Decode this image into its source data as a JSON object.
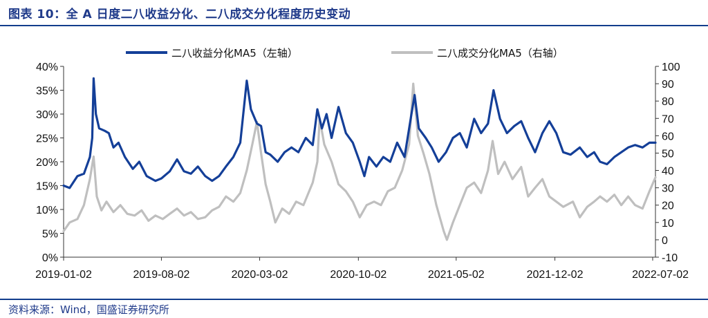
{
  "header": {
    "title": "图表 10：全 A 日度二八收益分化、二八成交分化程度历史变动"
  },
  "footer": {
    "source": "资料来源：Wind，国盛证券研究所"
  },
  "chart_data": {
    "type": "line",
    "x_ticks": [
      "2019-01-02",
      "2019-08-02",
      "2020-03-02",
      "2020-10-02",
      "2021-05-02",
      "2021-12-02",
      "2022-07-02"
    ],
    "x_range": [
      "2019-01-02",
      "2022-07-08"
    ],
    "y_left": {
      "min": 0,
      "max": 40,
      "step": 5,
      "format": "percent"
    },
    "y_right": {
      "min": -10,
      "max": 100,
      "step": 10
    },
    "grid": false,
    "legend": "top",
    "series": [
      {
        "name": "二八收益分化MA5（左轴）",
        "axis": "left",
        "color": "#143f98",
        "points": [
          [
            "2019-01-02",
            15.0
          ],
          [
            "2019-01-15",
            14.5
          ],
          [
            "2019-02-01",
            17.0
          ],
          [
            "2019-02-15",
            17.5
          ],
          [
            "2019-02-28",
            21.0
          ],
          [
            "2019-03-05",
            25.0
          ],
          [
            "2019-03-08",
            37.5
          ],
          [
            "2019-03-13",
            30.0
          ],
          [
            "2019-03-20",
            27.0
          ],
          [
            "2019-04-01",
            26.5
          ],
          [
            "2019-04-10",
            26.0
          ],
          [
            "2019-04-20",
            23.0
          ],
          [
            "2019-05-01",
            24.0
          ],
          [
            "2019-05-15",
            21.0
          ],
          [
            "2019-06-01",
            18.5
          ],
          [
            "2019-06-15",
            20.0
          ],
          [
            "2019-07-01",
            17.0
          ],
          [
            "2019-07-20",
            16.0
          ],
          [
            "2019-08-02",
            16.5
          ],
          [
            "2019-08-20",
            18.0
          ],
          [
            "2019-09-05",
            20.5
          ],
          [
            "2019-09-20",
            18.0
          ],
          [
            "2019-10-05",
            17.5
          ],
          [
            "2019-10-20",
            19.0
          ],
          [
            "2019-11-05",
            17.0
          ],
          [
            "2019-11-20",
            16.0
          ],
          [
            "2019-12-05",
            17.0
          ],
          [
            "2019-12-20",
            19.0
          ],
          [
            "2020-01-05",
            21.0
          ],
          [
            "2020-01-20",
            24.0
          ],
          [
            "2020-02-03",
            37.0
          ],
          [
            "2020-02-12",
            31.0
          ],
          [
            "2020-02-25",
            28.0
          ],
          [
            "2020-03-05",
            27.5
          ],
          [
            "2020-03-15",
            22.0
          ],
          [
            "2020-03-25",
            21.5
          ],
          [
            "2020-04-10",
            20.0
          ],
          [
            "2020-04-25",
            22.0
          ],
          [
            "2020-05-10",
            23.0
          ],
          [
            "2020-05-25",
            22.0
          ],
          [
            "2020-06-10",
            25.0
          ],
          [
            "2020-06-25",
            23.5
          ],
          [
            "2020-07-05",
            31.0
          ],
          [
            "2020-07-15",
            27.0
          ],
          [
            "2020-07-25",
            30.0
          ],
          [
            "2020-08-05",
            25.0
          ],
          [
            "2020-08-20",
            31.5
          ],
          [
            "2020-09-05",
            26.0
          ],
          [
            "2020-09-20",
            24.0
          ],
          [
            "2020-10-05",
            20.0
          ],
          [
            "2020-10-15",
            17.0
          ],
          [
            "2020-10-25",
            21.0
          ],
          [
            "2020-11-10",
            19.0
          ],
          [
            "2020-11-25",
            21.0
          ],
          [
            "2020-12-10",
            20.0
          ],
          [
            "2020-12-25",
            24.0
          ],
          [
            "2021-01-10",
            21.0
          ],
          [
            "2021-01-25",
            30.0
          ],
          [
            "2021-02-01",
            34.0
          ],
          [
            "2021-02-10",
            27.0
          ],
          [
            "2021-02-25",
            25.0
          ],
          [
            "2021-03-10",
            23.0
          ],
          [
            "2021-03-25",
            20.0
          ],
          [
            "2021-04-10",
            22.0
          ],
          [
            "2021-04-25",
            25.0
          ],
          [
            "2021-05-10",
            26.0
          ],
          [
            "2021-05-25",
            23.0
          ],
          [
            "2021-06-10",
            29.0
          ],
          [
            "2021-06-25",
            26.0
          ],
          [
            "2021-07-10",
            28.0
          ],
          [
            "2021-07-22",
            35.0
          ],
          [
            "2021-08-05",
            29.0
          ],
          [
            "2021-08-20",
            26.0
          ],
          [
            "2021-09-05",
            27.5
          ],
          [
            "2021-09-20",
            28.5
          ],
          [
            "2021-10-05",
            25.0
          ],
          [
            "2021-10-20",
            22.0
          ],
          [
            "2021-11-05",
            26.0
          ],
          [
            "2021-11-20",
            28.5
          ],
          [
            "2021-12-05",
            26.0
          ],
          [
            "2021-12-20",
            22.0
          ],
          [
            "2022-01-05",
            21.5
          ],
          [
            "2022-01-25",
            23.0
          ],
          [
            "2022-02-10",
            21.0
          ],
          [
            "2022-02-25",
            22.0
          ],
          [
            "2022-03-10",
            20.0
          ],
          [
            "2022-03-25",
            19.5
          ],
          [
            "2022-04-10",
            21.0
          ],
          [
            "2022-04-25",
            22.0
          ],
          [
            "2022-05-10",
            23.0
          ],
          [
            "2022-05-25",
            23.5
          ],
          [
            "2022-06-10",
            23.0
          ],
          [
            "2022-06-25",
            24.0
          ],
          [
            "2022-07-08",
            24.0
          ]
        ]
      },
      {
        "name": "二八成交分化MA5（右轴）",
        "axis": "right",
        "color": "#bfbfbf",
        "points": [
          [
            "2019-01-02",
            5.0
          ],
          [
            "2019-01-15",
            10.0
          ],
          [
            "2019-02-01",
            12.0
          ],
          [
            "2019-02-15",
            20.0
          ],
          [
            "2019-02-28",
            35.0
          ],
          [
            "2019-03-08",
            48.0
          ],
          [
            "2019-03-15",
            25.0
          ],
          [
            "2019-03-25",
            17.0
          ],
          [
            "2019-04-05",
            22.0
          ],
          [
            "2019-04-20",
            16.0
          ],
          [
            "2019-05-05",
            20.0
          ],
          [
            "2019-05-20",
            15.0
          ],
          [
            "2019-06-05",
            14.0
          ],
          [
            "2019-06-20",
            17.0
          ],
          [
            "2019-07-05",
            11.0
          ],
          [
            "2019-07-20",
            14.0
          ],
          [
            "2019-08-05",
            12.0
          ],
          [
            "2019-08-20",
            15.0
          ],
          [
            "2019-09-05",
            18.0
          ],
          [
            "2019-09-20",
            14.0
          ],
          [
            "2019-10-05",
            16.0
          ],
          [
            "2019-10-20",
            12.0
          ],
          [
            "2019-11-05",
            13.0
          ],
          [
            "2019-11-20",
            17.0
          ],
          [
            "2019-12-05",
            19.0
          ],
          [
            "2019-12-20",
            25.0
          ],
          [
            "2020-01-05",
            22.0
          ],
          [
            "2020-01-20",
            27.0
          ],
          [
            "2020-02-03",
            40.0
          ],
          [
            "2020-02-15",
            55.0
          ],
          [
            "2020-02-25",
            68.0
          ],
          [
            "2020-03-05",
            50.0
          ],
          [
            "2020-03-15",
            32.0
          ],
          [
            "2020-03-25",
            22.0
          ],
          [
            "2020-04-05",
            10.0
          ],
          [
            "2020-04-20",
            18.0
          ],
          [
            "2020-05-05",
            15.0
          ],
          [
            "2020-05-20",
            22.0
          ],
          [
            "2020-06-05",
            20.0
          ],
          [
            "2020-06-25",
            33.0
          ],
          [
            "2020-07-05",
            45.0
          ],
          [
            "2020-07-10",
            70.0
          ],
          [
            "2020-07-20",
            55.0
          ],
          [
            "2020-08-05",
            45.0
          ],
          [
            "2020-08-20",
            32.0
          ],
          [
            "2020-09-05",
            28.0
          ],
          [
            "2020-09-20",
            22.0
          ],
          [
            "2020-10-05",
            13.0
          ],
          [
            "2020-10-20",
            20.0
          ],
          [
            "2020-11-05",
            22.0
          ],
          [
            "2020-11-20",
            20.0
          ],
          [
            "2020-12-05",
            28.0
          ],
          [
            "2020-12-20",
            30.0
          ],
          [
            "2021-01-05",
            40.0
          ],
          [
            "2021-01-20",
            55.0
          ],
          [
            "2021-01-29",
            90.0
          ],
          [
            "2021-02-08",
            60.0
          ],
          [
            "2021-02-20",
            50.0
          ],
          [
            "2021-03-05",
            38.0
          ],
          [
            "2021-03-20",
            20.0
          ],
          [
            "2021-04-05",
            5.0
          ],
          [
            "2021-04-12",
            0.0
          ],
          [
            "2021-04-25",
            10.0
          ],
          [
            "2021-05-10",
            20.0
          ],
          [
            "2021-05-25",
            30.0
          ],
          [
            "2021-06-10",
            33.0
          ],
          [
            "2021-06-25",
            27.0
          ],
          [
            "2021-07-10",
            40.0
          ],
          [
            "2021-07-20",
            57.0
          ],
          [
            "2021-08-01",
            38.0
          ],
          [
            "2021-08-15",
            45.0
          ],
          [
            "2021-09-01",
            35.0
          ],
          [
            "2021-09-20",
            42.0
          ],
          [
            "2021-10-05",
            25.0
          ],
          [
            "2021-10-20",
            30.0
          ],
          [
            "2021-11-05",
            35.0
          ],
          [
            "2021-11-20",
            25.0
          ],
          [
            "2021-12-05",
            22.0
          ],
          [
            "2021-12-20",
            19.0
          ],
          [
            "2022-01-10",
            22.0
          ],
          [
            "2022-01-25",
            13.0
          ],
          [
            "2022-02-10",
            19.0
          ],
          [
            "2022-02-25",
            22.0
          ],
          [
            "2022-03-10",
            25.0
          ],
          [
            "2022-03-25",
            22.0
          ],
          [
            "2022-04-10",
            26.0
          ],
          [
            "2022-04-25",
            20.0
          ],
          [
            "2022-05-10",
            25.0
          ],
          [
            "2022-05-25",
            20.0
          ],
          [
            "2022-06-10",
            18.0
          ],
          [
            "2022-06-25",
            28.0
          ],
          [
            "2022-07-08",
            36.0
          ]
        ]
      }
    ]
  }
}
